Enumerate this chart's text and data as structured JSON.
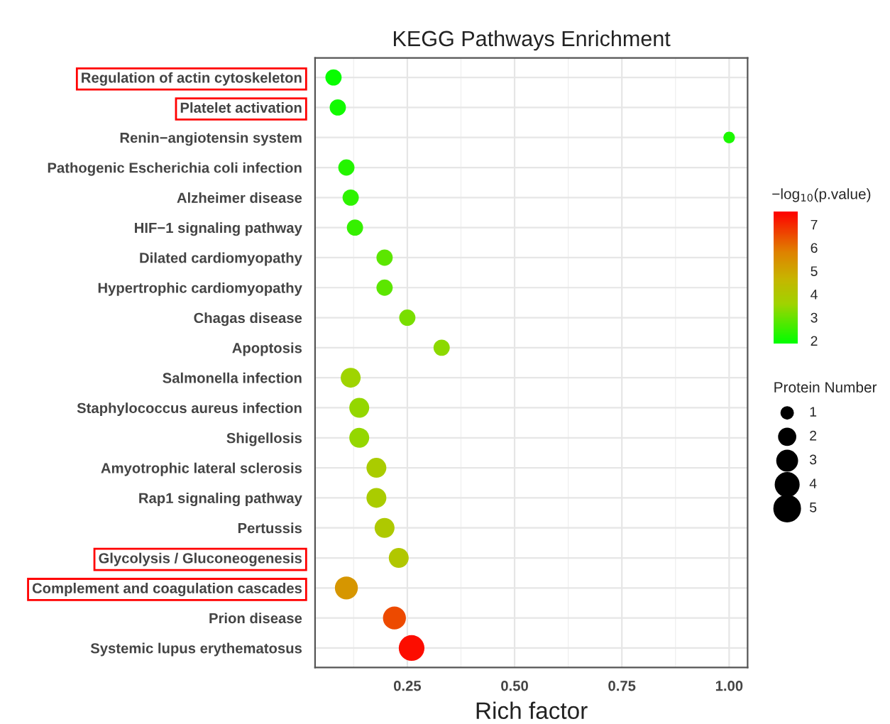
{
  "chart_data": {
    "type": "bubble",
    "title": "KEGG Pathways Enrichment",
    "xlabel": "Rich factor",
    "legend_title": "Protein Number",
    "clabel": "−log$_{10}$(p.value)",
    "orientation": "horizontal",
    "categories": [
      "Regulation of actin cytoskeleton",
      "Platelet activation",
      "Renin−angiotensin system",
      "Pathogenic Escherichia coli infection",
      "Alzheimer disease",
      "HIF−1 signaling pathway",
      "Dilated cardiomyopathy",
      "Hypertrophic cardiomyopathy",
      "Chagas disease",
      "Apoptosis",
      "Salmonella infection",
      "Staphylococcus aureus infection",
      "Shigellosis",
      "Amyotrophic lateral sclerosis",
      "Rap1 signaling pathway",
      "Pertussis",
      "Glycolysis / Gluconeogenesis",
      "Complement and coagulation cascades",
      "Prion disease",
      "Systemic lupus erythematosus"
    ],
    "values": [
      0.078,
      0.088,
      1.0,
      0.108,
      0.118,
      0.128,
      0.197,
      0.197,
      0.25,
      0.33,
      0.118,
      0.138,
      0.138,
      0.178,
      0.178,
      0.197,
      0.23,
      0.108,
      0.22,
      0.26
    ],
    "sizes": [
      2,
      2,
      1,
      2,
      2,
      2,
      2,
      2,
      2,
      2,
      3,
      3,
      3,
      3,
      3,
      3,
      3,
      4,
      4,
      5
    ],
    "cvalues": [
      1.9,
      2.0,
      2.1,
      2.2,
      2.3,
      2.4,
      2.8,
      2.8,
      3.1,
      3.3,
      3.5,
      3.4,
      3.4,
      3.8,
      3.8,
      3.9,
      4.0,
      5.3,
      6.5,
      7.3
    ],
    "size_legend": [
      1,
      2,
      3,
      4,
      5
    ],
    "clim": [
      1.8,
      7.5
    ],
    "cticks": [
      2,
      3,
      4,
      5,
      6,
      7
    ],
    "xlim": [
      0.035,
      1.043
    ],
    "xticks": [
      {
        "value": 0.25,
        "label": "0.25"
      },
      {
        "value": 0.5,
        "label": "0.50"
      },
      {
        "value": 0.75,
        "label": "0.75"
      },
      {
        "value": 1.0,
        "label": "1.00"
      }
    ],
    "grid": true
  }
}
